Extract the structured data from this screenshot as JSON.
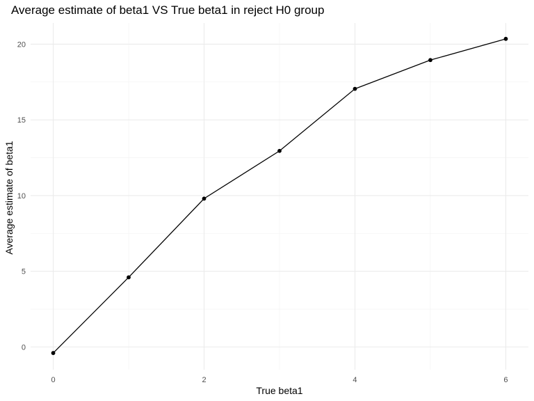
{
  "chart_data": {
    "type": "line",
    "title": "Average estimate of beta1 VS True beta1 in reject H0 group",
    "xlabel": "True beta1",
    "ylabel": "Average estimate of beta1",
    "x": [
      0,
      1,
      2,
      3,
      4,
      5,
      6
    ],
    "series": [
      {
        "values": [
          -0.4,
          4.6,
          9.8,
          12.95,
          17.05,
          18.95,
          20.35
        ]
      }
    ],
    "xlim": [
      -0.3,
      6.3
    ],
    "ylim": [
      -1.5,
      21.4
    ],
    "x_ticks": [
      "0",
      "2",
      "4",
      "6"
    ],
    "y_ticks": [
      "0",
      "5",
      "10",
      "15",
      "20"
    ],
    "grid": true,
    "legend": "none",
    "colors": {
      "line": "#000000",
      "point": "#000000",
      "grid_major": "#ebebeb",
      "grid_minor": "#f2f2f2",
      "background": "#ffffff"
    }
  }
}
